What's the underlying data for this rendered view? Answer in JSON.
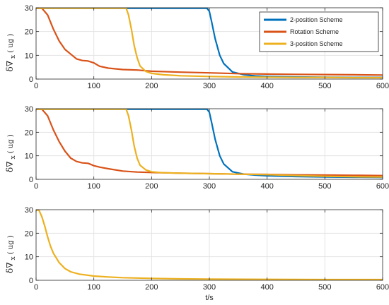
{
  "chart_data": [
    {
      "type": "line",
      "xlim": [
        0,
        600
      ],
      "ylim": [
        0,
        30
      ],
      "xticks": [
        0,
        100,
        200,
        300,
        400,
        500,
        600
      ],
      "yticks": [
        0,
        10,
        20,
        30
      ],
      "ylabel": {
        "main": "δ∇",
        "sub": "x",
        "unit": "ug"
      },
      "grid": true,
      "legend": "top-right",
      "series": [
        {
          "name": "2-position Scheme",
          "color": "#0072BD",
          "x": [
            0,
            100,
            200,
            296,
            300,
            304,
            310,
            318,
            325,
            340,
            360,
            380,
            400,
            450,
            500,
            550,
            600
          ],
          "y": [
            29.8,
            29.8,
            29.8,
            29.8,
            28.5,
            24,
            17,
            10,
            6.5,
            3,
            1.8,
            1.3,
            1.1,
            0.9,
            0.8,
            0.7,
            0.7
          ]
        },
        {
          "name": "Rotation Scheme",
          "color": "#D95319",
          "x": [
            0,
            10,
            20,
            30,
            40,
            50,
            60,
            70,
            80,
            90,
            100,
            110,
            125,
            150,
            175,
            200,
            250,
            300,
            350,
            400,
            450,
            500,
            550,
            600
          ],
          "y": [
            29.8,
            29.8,
            27,
            21,
            16,
            12.5,
            10.5,
            8.5,
            7.8,
            7.6,
            6.8,
            5.4,
            4.6,
            4,
            3.8,
            3.3,
            2.9,
            2.6,
            2.3,
            2.1,
            2,
            1.9,
            1.8,
            1.7
          ]
        },
        {
          "name": "3-position Scheme",
          "color": "#EDB120",
          "x": [
            0,
            50,
            100,
            150,
            156,
            160,
            165,
            170,
            175,
            180,
            190,
            200,
            220,
            250,
            300,
            350,
            400,
            450,
            500,
            550,
            600
          ],
          "y": [
            29.8,
            29.8,
            29.8,
            29.8,
            29.8,
            27,
            21,
            14,
            9,
            5.5,
            3.2,
            2.4,
            1.8,
            1.4,
            1.1,
            0.9,
            0.8,
            0.7,
            0.7,
            0.6,
            0.6
          ]
        }
      ]
    },
    {
      "type": "line",
      "xlim": [
        0,
        600
      ],
      "ylim": [
        0,
        30
      ],
      "xticks": [
        0,
        100,
        200,
        300,
        400,
        500,
        600
      ],
      "yticks": [
        0,
        10,
        20,
        30
      ],
      "ylabel": {
        "main": "δ∇",
        "sub": "x",
        "unit": "ug"
      },
      "grid": true,
      "series": [
        {
          "name": "2-position Scheme",
          "color": "#0072BD",
          "x": [
            0,
            100,
            200,
            296,
            300,
            304,
            310,
            318,
            325,
            340,
            360,
            380,
            400,
            450,
            500,
            550,
            600
          ],
          "y": [
            29.8,
            29.8,
            29.8,
            29.8,
            28.5,
            24,
            17,
            10,
            6.5,
            3.2,
            2.2,
            1.8,
            1.5,
            1.2,
            1.0,
            0.9,
            0.8
          ]
        },
        {
          "name": "Rotation Scheme",
          "color": "#D95319",
          "x": [
            0,
            10,
            20,
            30,
            40,
            50,
            60,
            70,
            80,
            90,
            100,
            110,
            125,
            150,
            175,
            200,
            250,
            300,
            350,
            400,
            450,
            500,
            550,
            600
          ],
          "y": [
            29.8,
            29.8,
            27,
            21,
            16,
            12,
            9,
            7.6,
            7,
            6.8,
            5.8,
            5.2,
            4.5,
            3.5,
            3.1,
            2.9,
            2.6,
            2.4,
            2.2,
            2.1,
            1.9,
            1.8,
            1.7,
            1.6
          ]
        },
        {
          "name": "3-position Scheme",
          "color": "#EDB120",
          "x": [
            0,
            50,
            100,
            150,
            156,
            160,
            165,
            170,
            175,
            180,
            190,
            200,
            220,
            250,
            300,
            350,
            400,
            450,
            500,
            550,
            600
          ],
          "y": [
            29.8,
            29.8,
            29.8,
            29.8,
            29.8,
            27,
            21,
            14,
            9,
            6,
            4,
            3.2,
            2.8,
            2.6,
            2.4,
            2.2,
            2.0,
            1.6,
            1.3,
            1.1,
            1.0
          ]
        }
      ]
    },
    {
      "type": "line",
      "xlim": [
        0,
        600
      ],
      "ylim": [
        0,
        30
      ],
      "xticks": [
        0,
        100,
        200,
        300,
        400,
        500,
        600
      ],
      "yticks": [
        0,
        10,
        20,
        30
      ],
      "ylabel": {
        "main": "δ∇",
        "sub": "x",
        "unit": "ug"
      },
      "xlabel": "t/s",
      "grid": true,
      "series": [
        {
          "name": "3-position Scheme",
          "color": "#EDB120",
          "x": [
            0,
            5,
            10,
            15,
            20,
            25,
            30,
            40,
            50,
            60,
            75,
            100,
            125,
            150,
            200,
            250,
            300,
            400,
            500,
            600
          ],
          "y": [
            29.8,
            29.8,
            27,
            23,
            18.5,
            14.5,
            11.5,
            7.5,
            5,
            3.6,
            2.6,
            1.8,
            1.4,
            1.1,
            0.8,
            0.6,
            0.5,
            0.4,
            0.3,
            0.3
          ]
        }
      ]
    }
  ]
}
